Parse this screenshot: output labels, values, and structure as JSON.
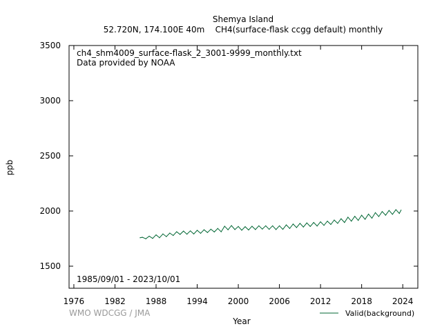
{
  "chart_data": {
    "type": "line",
    "title": "Shemya Island",
    "subtitle": "52.720N, 174.100E 40m    CH4(surface-flask ccgg default) monthly",
    "file_label": "ch4_shm4009_surface-flask_2_3001-9999_monthly.txt",
    "provider_label": "Data provided by NOAA",
    "date_range_label": "1985/09/01 - 2023/10/01",
    "credit": "WMO WDCGG / JMA",
    "xlabel": "Year",
    "ylabel": "ppb",
    "xlim": [
      1975.3,
      2026.2
    ],
    "ylim": [
      1300,
      3500
    ],
    "x_ticks": [
      1976,
      1982,
      1988,
      1994,
      2000,
      2006,
      2012,
      2018,
      2024
    ],
    "y_ticks": [
      1500,
      2000,
      2500,
      3000,
      3500
    ],
    "grid": false,
    "legend_position": "bottom-right",
    "series": [
      {
        "name": "Valid(background)",
        "color": "#006633",
        "x": [
          1985.67,
          1986.0,
          1986.5,
          1987.0,
          1987.5,
          1988.0,
          1988.5,
          1989.0,
          1989.5,
          1990.0,
          1990.5,
          1991.0,
          1991.5,
          1992.0,
          1992.5,
          1993.0,
          1993.5,
          1994.0,
          1994.5,
          1995.0,
          1995.5,
          1996.0,
          1996.5,
          1997.0,
          1997.5,
          1998.0,
          1998.5,
          1999.0,
          1999.5,
          2000.0,
          2000.5,
          2001.0,
          2001.5,
          2002.0,
          2002.5,
          2003.0,
          2003.5,
          2004.0,
          2004.5,
          2005.0,
          2005.5,
          2006.0,
          2006.5,
          2007.0,
          2007.5,
          2008.0,
          2008.5,
          2009.0,
          2009.5,
          2010.0,
          2010.5,
          2011.0,
          2011.5,
          2012.0,
          2012.5,
          2013.0,
          2013.5,
          2014.0,
          2014.5,
          2015.0,
          2015.5,
          2016.0,
          2016.5,
          2017.0,
          2017.5,
          2018.0,
          2018.5,
          2019.0,
          2019.5,
          2020.0,
          2020.5,
          2021.0,
          2021.5,
          2022.0,
          2022.5,
          2023.0,
          2023.5,
          2023.75
        ],
        "y": [
          1758,
          1762,
          1748,
          1772,
          1752,
          1784,
          1758,
          1792,
          1768,
          1800,
          1778,
          1812,
          1788,
          1818,
          1790,
          1820,
          1792,
          1825,
          1798,
          1830,
          1805,
          1835,
          1810,
          1842,
          1812,
          1862,
          1830,
          1868,
          1832,
          1860,
          1826,
          1858,
          1828,
          1862,
          1832,
          1866,
          1836,
          1866,
          1834,
          1866,
          1832,
          1866,
          1834,
          1874,
          1842,
          1882,
          1850,
          1888,
          1855,
          1892,
          1860,
          1896,
          1864,
          1902,
          1870,
          1908,
          1878,
          1918,
          1888,
          1930,
          1896,
          1944,
          1908,
          1952,
          1915,
          1962,
          1925,
          1972,
          1935,
          1985,
          1950,
          1995,
          1962,
          2005,
          1970,
          2012,
          1978,
          2008
        ]
      }
    ]
  }
}
